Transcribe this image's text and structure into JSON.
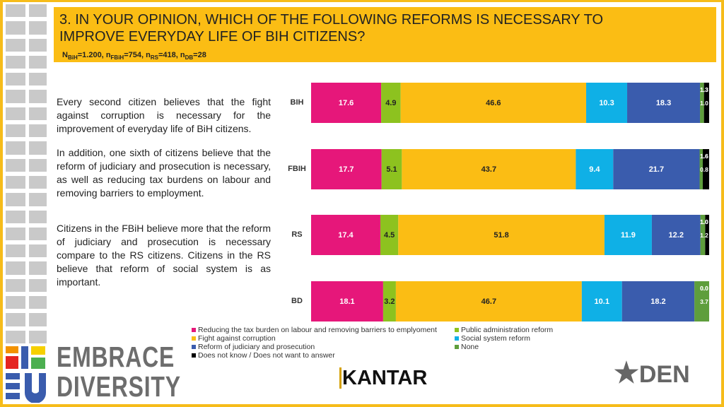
{
  "header": {
    "title_line1": "3. IN YOUR OPINION, WHICH OF THE FOLLOWING REFORMS IS NECESSARY TO",
    "title_line2": "IMPROVE EVERYDAY LIFE OF BIH CITIZENS?",
    "sample": {
      "n_bih_label": "N",
      "n_bih_sub": "BiH",
      "n_bih": "=1.200, ",
      "n_fbih_label": "n",
      "n_fbih_sub": "FBiH",
      "n_fbih": "=754, ",
      "n_rs_label": "n",
      "n_rs_sub": "RS",
      "n_rs": "=418, ",
      "n_db_label": "n",
      "n_db_sub": "DB",
      "n_db": "=28"
    }
  },
  "text": {
    "p1": "Every second citizen believes that the fight against corruption is necessary for the improvement of everyday life of BiH citizens.",
    "p2": "In addition, one sixth of citizens believe that the reform of judiciary and prosecution is necessary, as well as reducing tax burdens on labour and removing barriers to employment.",
    "p3": "Citizens in the FBiH believe more that the reform of judiciary and prosecution is necessary compare to the RS citizens. Citizens in the RS believe that reform of social system is as important."
  },
  "chart_data": {
    "type": "bar",
    "orientation": "horizontal",
    "stacked": true,
    "xlim": [
      0,
      100
    ],
    "categories": [
      "BIH",
      "FBIH",
      "RS",
      "BD"
    ],
    "series": [
      {
        "name": "Reducing the tax burden on labour and removing barriers to emplyoment",
        "color": "#e6177a",
        "values": [
          17.6,
          17.7,
          17.4,
          18.1
        ]
      },
      {
        "name": "Public administration reform",
        "color": "#8dc21f",
        "values": [
          4.9,
          5.1,
          4.5,
          3.2
        ]
      },
      {
        "name": "Fight against corruption",
        "color": "#fbbd14",
        "values": [
          46.6,
          43.7,
          51.8,
          46.7
        ]
      },
      {
        "name": "Social system reform",
        "color": "#0fb0e6",
        "values": [
          10.3,
          9.4,
          11.9,
          10.1
        ]
      },
      {
        "name": "Reform of judiciary and prosecution",
        "color": "#3a5cad",
        "values": [
          18.3,
          21.7,
          12.2,
          18.2
        ]
      },
      {
        "name": "None",
        "color": "#5e9e3c",
        "values": [
          1.0,
          0.8,
          1.2,
          3.7
        ]
      },
      {
        "name": "Does not know / Does not want to answer",
        "color": "#000000",
        "values": [
          1.3,
          1.6,
          1.0,
          0.0
        ]
      }
    ],
    "legend": "bottom"
  },
  "legend_layout_order": [
    0,
    1,
    2,
    3,
    4,
    5,
    6
  ],
  "logos": {
    "embrace": "EMBRACE",
    "diversity": "DIVERSITY",
    "kantar": "KANTAR",
    "den": "DEN"
  }
}
